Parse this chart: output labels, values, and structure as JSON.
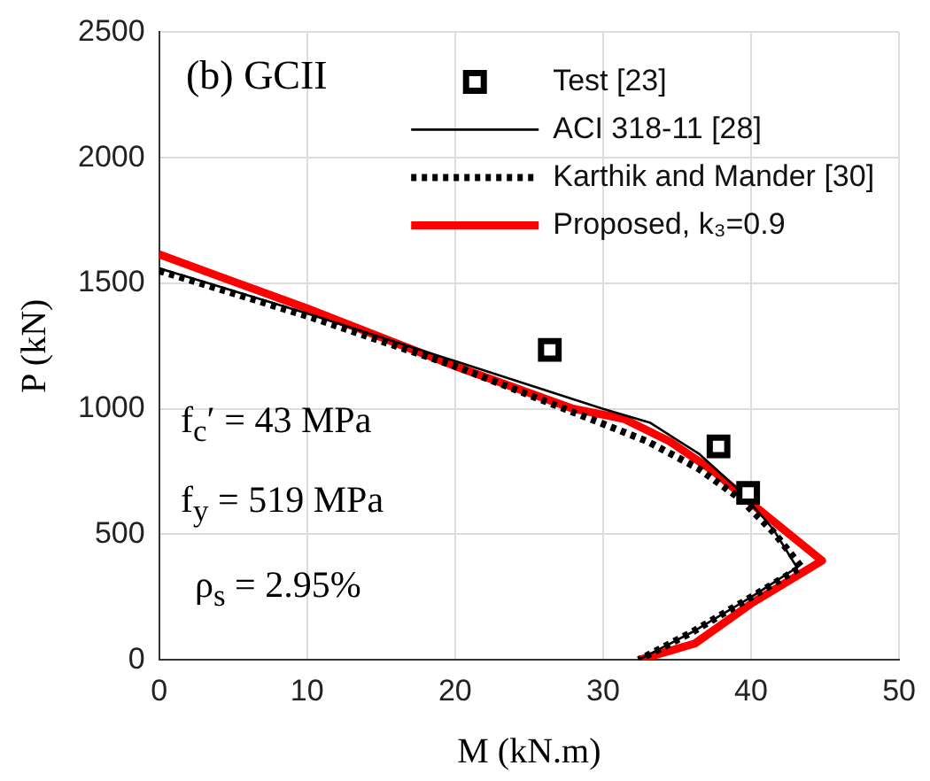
{
  "chart_data": {
    "type": "line",
    "xlabel": "M (kN.m)",
    "ylabel": "P (kN)",
    "xlim": [
      0,
      50
    ],
    "xticks": [
      0,
      10,
      20,
      30,
      40,
      50
    ],
    "ylim": [
      0,
      2500
    ],
    "yticks": [
      0,
      500,
      1000,
      1500,
      2000,
      2500
    ],
    "grid": true,
    "legend": "top right",
    "annotations": [
      "(b) GCII",
      "f$_{c}$′ = 43 MPa",
      "f$_{y}$ = 519 MPa",
      "ρ$_{s}$ = 2.95%"
    ],
    "series": [
      {
        "name": "Test [23]",
        "type": "scatter",
        "marker": "square",
        "color": "#000000",
        "x": [
          26.4,
          37.8,
          39.8
        ],
        "values": [
          1235,
          850,
          665
        ]
      },
      {
        "name": "ACI 318-11 [28]",
        "type": "line",
        "marker": "none",
        "line_style": "solid",
        "color": "#000000",
        "x": [
          0,
          10,
          20,
          30,
          33.2,
          36.5,
          39.3,
          41.5,
          43.1,
          40,
          36,
          32.4
        ],
        "values": [
          1560,
          1380,
          1190,
          1000,
          944,
          820,
          670,
          520,
          368,
          250,
          110,
          0
        ]
      },
      {
        "name": "Karthik and Mander [30]",
        "type": "line",
        "marker": "none",
        "line_style": "dotted",
        "color": "#000000",
        "x": [
          0,
          10,
          20,
          30,
          33,
          36.5,
          39.3,
          41.5,
          43.4,
          40,
          36,
          32.4
        ],
        "values": [
          1550,
          1370,
          1170,
          940,
          870,
          760,
          640,
          510,
          370,
          250,
          110,
          0
        ]
      },
      {
        "name": "Proposed, k₃=0.9",
        "type": "line",
        "marker": "none",
        "line_style": "solid",
        "color": "#ff0000",
        "x": [
          0,
          10,
          20,
          28,
          31.4,
          34.5,
          37.5,
          40.5,
          44.8,
          40.1,
          36.2,
          32.4
        ],
        "values": [
          1615,
          1400,
          1170,
          1000,
          960,
          870,
          750,
          600,
          395,
          228,
          65,
          0
        ]
      }
    ]
  }
}
